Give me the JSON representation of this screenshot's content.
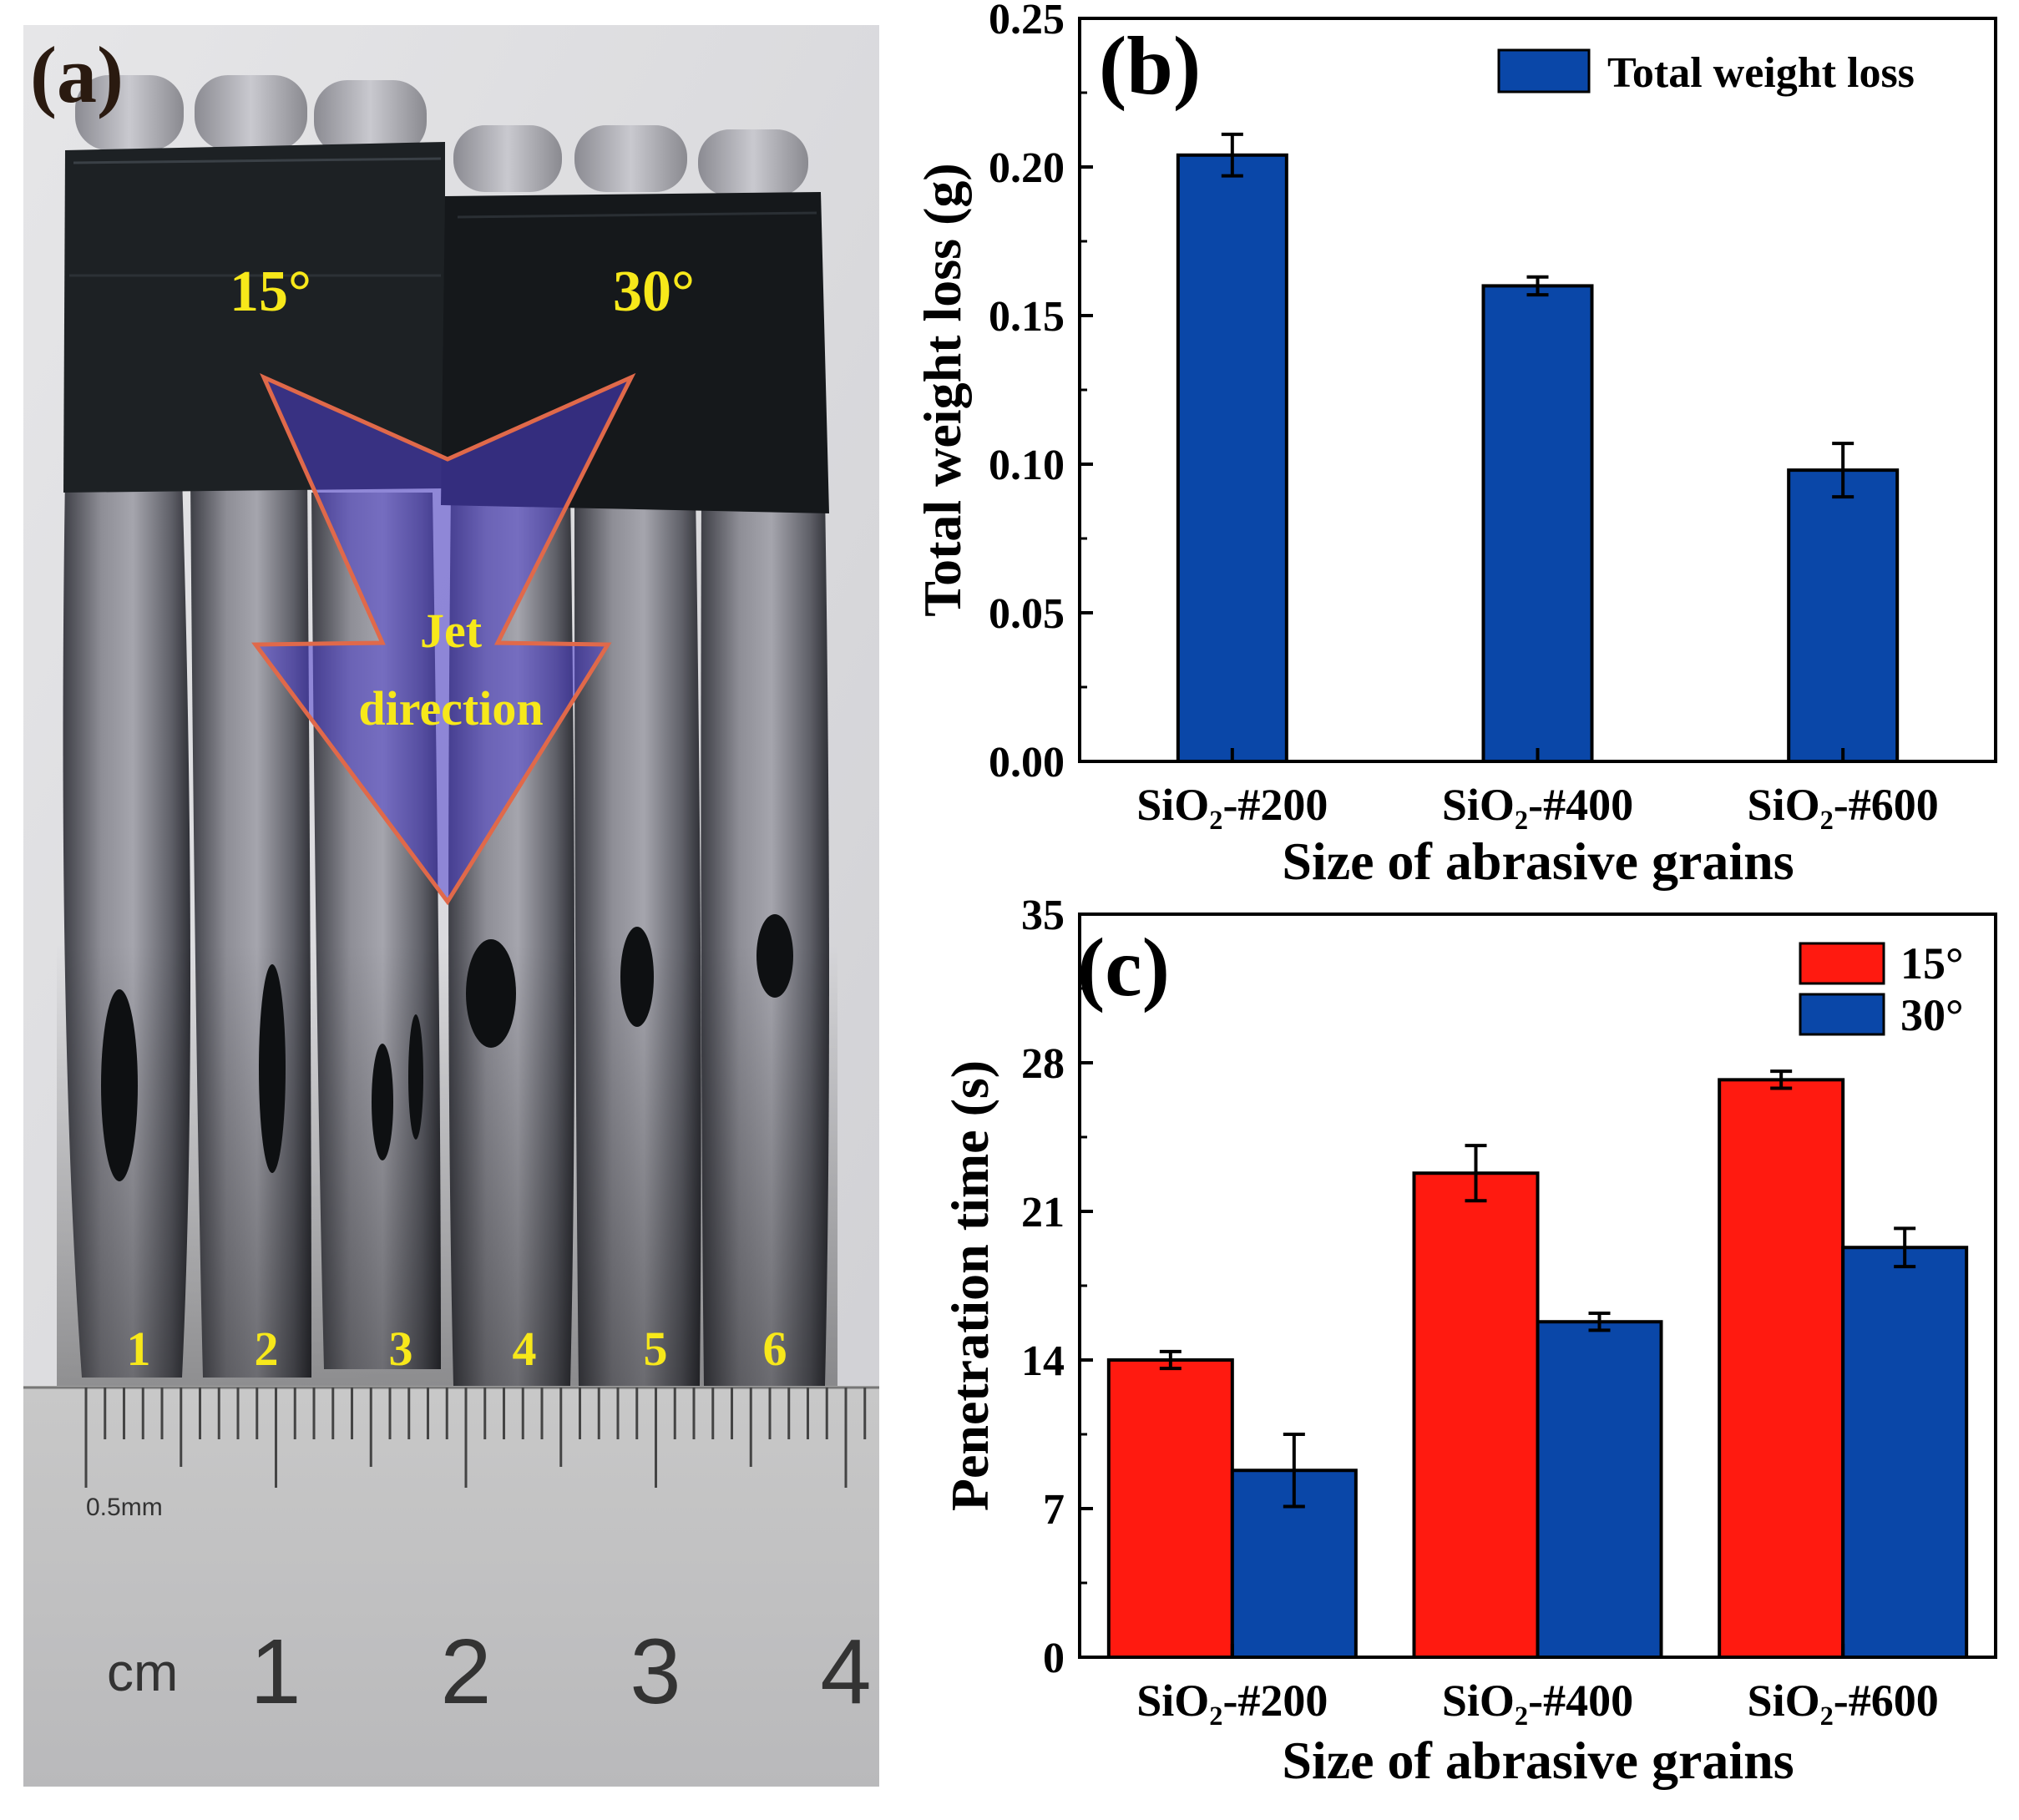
{
  "panel_a": {
    "label": "(a)",
    "angle_15": "15°",
    "angle_30": "30°",
    "jet_line1": "Jet",
    "jet_line2": "direction",
    "tube_numbers": [
      "1",
      "2",
      "3",
      "4",
      "5",
      "6"
    ],
    "ruler_small_label": "0.5mm",
    "ruler_unit": "cm",
    "ruler_numbers": [
      "1",
      "2",
      "3",
      "4"
    ]
  },
  "colors": {
    "red": "#ff1a10",
    "blue": "#0a47a8",
    "label_yellow": "#f7e81a",
    "arrow_outline": "#e0694a",
    "arrow_fill": "#4f3fd0"
  },
  "chart_data": [
    {
      "panel_label": "(b)",
      "type": "bar",
      "categories": [
        "SiO₂-#200",
        "SiO₂-#400",
        "SiO₂-#600"
      ],
      "series": [
        {
          "name": "Total weight loss",
          "values": [
            0.204,
            0.16,
            0.098
          ],
          "errors": [
            0.007,
            0.003,
            0.009
          ]
        }
      ],
      "xlabel": "Size of abrasive grains",
      "ylabel": "Total weight loss (g)",
      "ylim": [
        0,
        0.25
      ],
      "yticks": [
        "0.00",
        "0.05",
        "0.10",
        "0.15",
        "0.20",
        "0.25"
      ],
      "legend_position": "top-right"
    },
    {
      "panel_label": "(c)",
      "type": "bar",
      "categories": [
        "SiO₂-#200",
        "SiO₂-#400",
        "SiO₂-#600"
      ],
      "series": [
        {
          "name": "15°",
          "values": [
            14.0,
            22.8,
            27.2
          ],
          "errors": [
            0.4,
            1.3,
            0.4
          ]
        },
        {
          "name": "30°",
          "values": [
            8.8,
            15.8,
            19.3
          ],
          "errors": [
            1.7,
            0.4,
            0.9
          ]
        }
      ],
      "xlabel": "Size of abrasive grains",
      "ylabel": "Penetration time (s)",
      "ylim": [
        0,
        35
      ],
      "yticks": [
        "0",
        "7",
        "14",
        "21",
        "28",
        "35"
      ],
      "legend_position": "top-right"
    }
  ]
}
